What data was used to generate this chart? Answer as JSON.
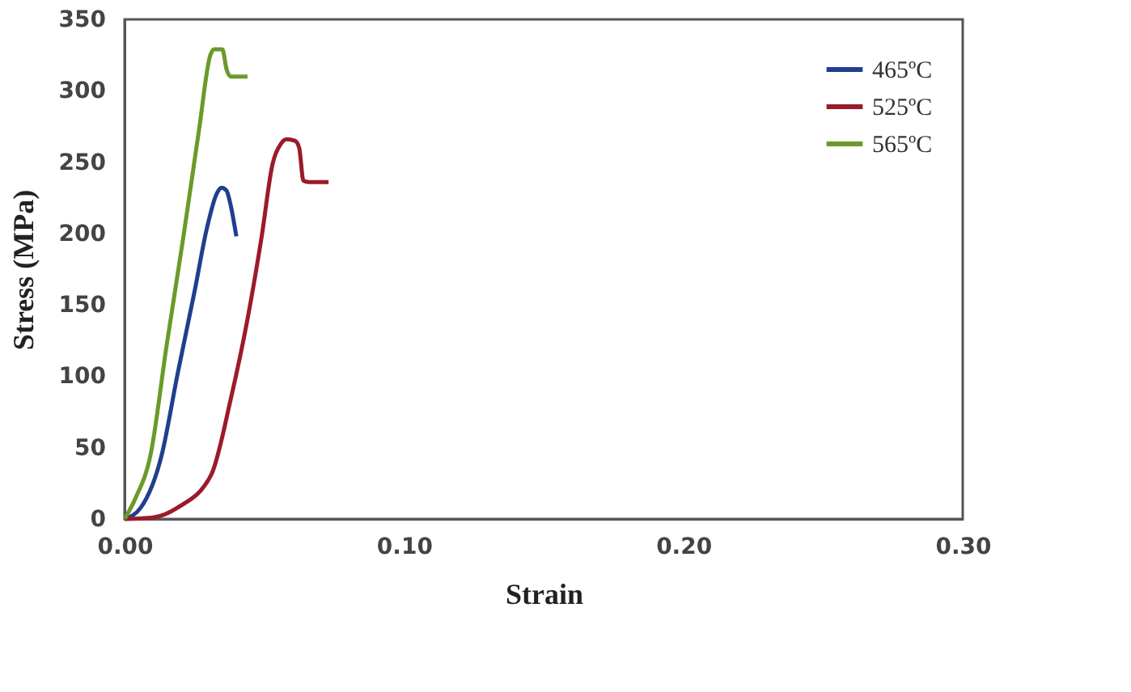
{
  "chart_data": {
    "type": "line",
    "xlabel": "Strain",
    "ylabel": "Stress (MPa)",
    "xlim": [
      0,
      0.3
    ],
    "xticks": [
      {
        "value": 0,
        "label": "0.00"
      },
      {
        "value": 0.1,
        "label": "0.10"
      },
      {
        "value": 0.2,
        "label": "0.20"
      },
      {
        "value": 0.3,
        "label": "0.30"
      }
    ],
    "ylim": [
      0,
      350
    ],
    "yticks": [
      0,
      50,
      100,
      150,
      200,
      250,
      300,
      350
    ],
    "grid": false,
    "legend": "top right",
    "marker": "none",
    "line_style": "solid",
    "series": [
      {
        "name": "465ºC",
        "color": "#1f3f8f",
        "x": [
          0,
          0.0058,
          0.0133,
          0.019,
          0.025,
          0.0295,
          0.033,
          0.0347,
          0.0365,
          0.0376,
          0.04
        ],
        "values": [
          0,
          8,
          45,
          102,
          159,
          204,
          228,
          232,
          230,
          223,
          198
        ]
      },
      {
        "name": "525ºC",
        "color": "#9b1b2a",
        "x": [
          0,
          0.01,
          0.019,
          0.031,
          0.038,
          0.044,
          0.049,
          0.053,
          0.056,
          0.058,
          0.061,
          0.0625,
          0.064,
          0.066,
          0.073
        ],
        "values": [
          0,
          1,
          8,
          31,
          84,
          140,
          197,
          249,
          263,
          266,
          265,
          260,
          237,
          236,
          236
        ]
      },
      {
        "name": "565ºC",
        "color": "#6a9a2a",
        "x": [
          0,
          0.004,
          0.0093,
          0.015,
          0.021,
          0.0266,
          0.0307,
          0.032,
          0.035,
          0.0365,
          0.038,
          0.044
        ],
        "values": [
          0,
          15,
          45,
          121,
          197,
          272,
          325,
          329,
          329,
          315,
          310,
          310
        ]
      }
    ]
  }
}
